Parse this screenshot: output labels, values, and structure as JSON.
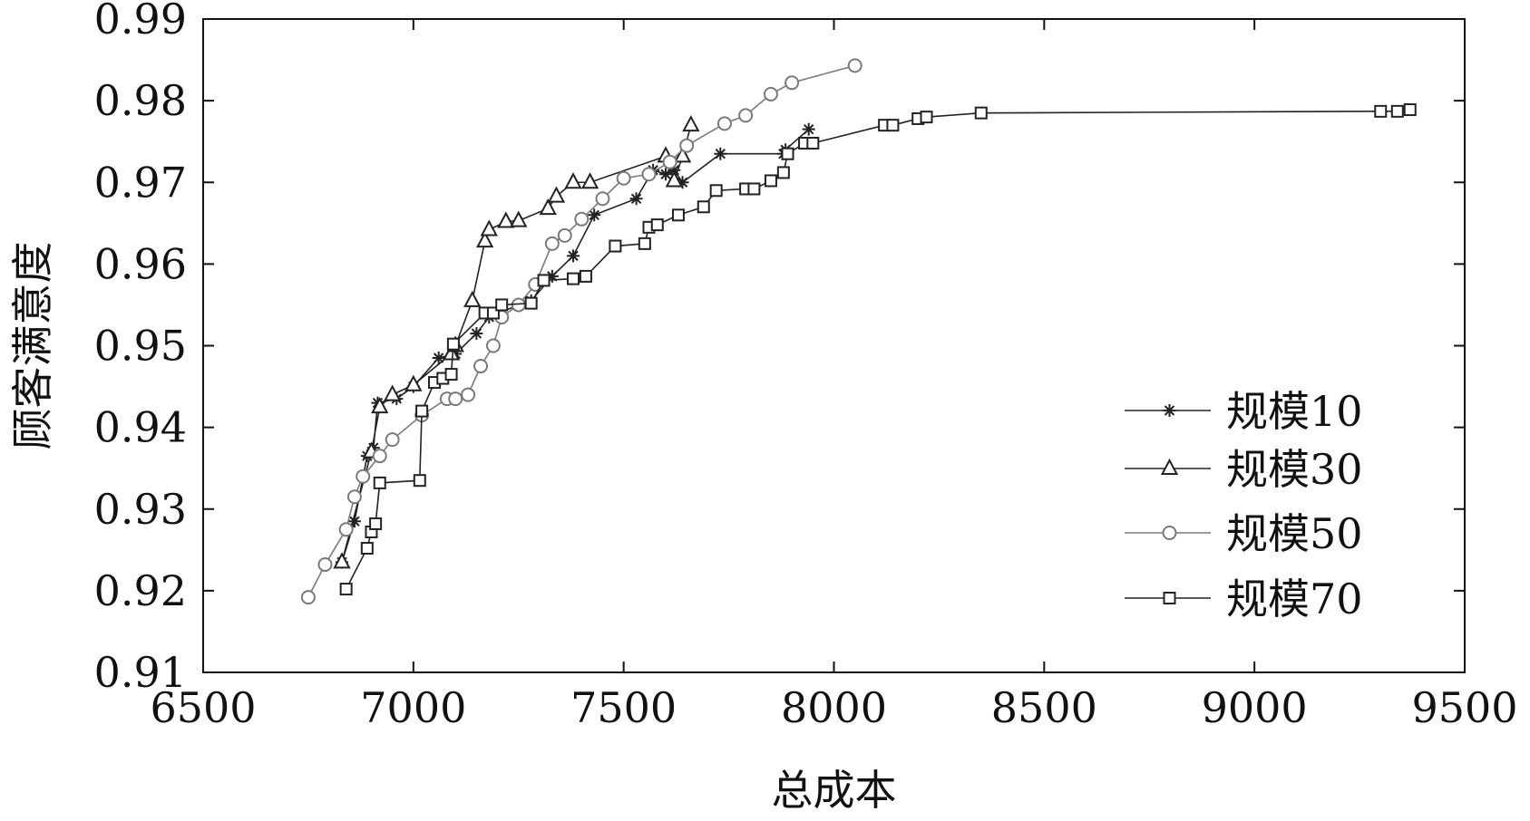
{
  "chart_data": {
    "type": "line",
    "title": "",
    "xlabel": "总成本",
    "ylabel": "顾客满意度",
    "xlim": [
      6500,
      9500
    ],
    "ylim": [
      0.91,
      0.99
    ],
    "xticks": [
      "6500",
      "7000",
      "7500",
      "8000",
      "8500",
      "9000",
      "9500"
    ],
    "yticks": [
      "0.91",
      "0.92",
      "0.93",
      "0.94",
      "0.95",
      "0.96",
      "0.97",
      "0.98",
      "0.99"
    ],
    "grid": false,
    "legend_position": "bottom-right",
    "series": [
      {
        "name": "规模10",
        "marker": "star",
        "color": "#222222",
        "points": [
          [
            6830,
            0.9235
          ],
          [
            6860,
            0.9285
          ],
          [
            6890,
            0.9365
          ],
          [
            6905,
            0.9375
          ],
          [
            6915,
            0.943
          ],
          [
            6960,
            0.9435
          ],
          [
            7000,
            0.945
          ],
          [
            7060,
            0.9485
          ],
          [
            7100,
            0.949
          ],
          [
            7150,
            0.9515
          ],
          [
            7180,
            0.9535
          ],
          [
            7200,
            0.954
          ],
          [
            7280,
            0.9555
          ],
          [
            7330,
            0.9585
          ],
          [
            7380,
            0.961
          ],
          [
            7430,
            0.966
          ],
          [
            7530,
            0.968
          ],
          [
            7570,
            0.9715
          ],
          [
            7600,
            0.971
          ],
          [
            7620,
            0.9715
          ],
          [
            7640,
            0.97
          ],
          [
            7730,
            0.9735
          ],
          [
            7880,
            0.9735
          ],
          [
            7885,
            0.974
          ],
          [
            7940,
            0.9765
          ]
        ]
      },
      {
        "name": "规模30",
        "marker": "triangle",
        "color": "#222222",
        "points": [
          [
            6830,
            0.9235
          ],
          [
            6900,
            0.937
          ],
          [
            6920,
            0.9425
          ],
          [
            6950,
            0.944
          ],
          [
            7000,
            0.9452
          ],
          [
            7090,
            0.949
          ],
          [
            7100,
            0.95
          ],
          [
            7140,
            0.9555
          ],
          [
            7170,
            0.9628
          ],
          [
            7180,
            0.9642
          ],
          [
            7220,
            0.9652
          ],
          [
            7250,
            0.9653
          ],
          [
            7320,
            0.9668
          ],
          [
            7340,
            0.9683
          ],
          [
            7380,
            0.97
          ],
          [
            7420,
            0.97
          ],
          [
            7600,
            0.9732
          ],
          [
            7620,
            0.9702
          ],
          [
            7640,
            0.9732
          ],
          [
            7660,
            0.977
          ]
        ]
      },
      {
        "name": "规模50",
        "marker": "circle",
        "color": "#7a7a7a",
        "points": [
          [
            6750,
            0.9192
          ],
          [
            6790,
            0.9232
          ],
          [
            6840,
            0.9275
          ],
          [
            6860,
            0.9315
          ],
          [
            6880,
            0.934
          ],
          [
            6920,
            0.9365
          ],
          [
            6950,
            0.9385
          ],
          [
            7020,
            0.9415
          ],
          [
            7080,
            0.9435
          ],
          [
            7100,
            0.9435
          ],
          [
            7130,
            0.944
          ],
          [
            7160,
            0.9475
          ],
          [
            7190,
            0.95
          ],
          [
            7210,
            0.9535
          ],
          [
            7250,
            0.955
          ],
          [
            7290,
            0.9575
          ],
          [
            7330,
            0.9625
          ],
          [
            7360,
            0.9635
          ],
          [
            7400,
            0.9655
          ],
          [
            7450,
            0.968
          ],
          [
            7500,
            0.9705
          ],
          [
            7560,
            0.971
          ],
          [
            7610,
            0.9725
          ],
          [
            7650,
            0.9745
          ],
          [
            7740,
            0.9772
          ],
          [
            7790,
            0.9782
          ],
          [
            7850,
            0.9808
          ],
          [
            7900,
            0.9822
          ],
          [
            8050,
            0.9843
          ]
        ]
      },
      {
        "name": "规模70",
        "marker": "square",
        "color": "#222222",
        "points": [
          [
            6840,
            0.9202
          ],
          [
            6890,
            0.9252
          ],
          [
            6900,
            0.9272
          ],
          [
            6910,
            0.9282
          ],
          [
            6920,
            0.9332
          ],
          [
            7015,
            0.9335
          ],
          [
            7020,
            0.942
          ],
          [
            7050,
            0.9455
          ],
          [
            7070,
            0.946
          ],
          [
            7090,
            0.9465
          ],
          [
            7095,
            0.9502
          ],
          [
            7170,
            0.954
          ],
          [
            7190,
            0.954
          ],
          [
            7210,
            0.955
          ],
          [
            7280,
            0.9552
          ],
          [
            7310,
            0.958
          ],
          [
            7380,
            0.9582
          ],
          [
            7410,
            0.9585
          ],
          [
            7480,
            0.9622
          ],
          [
            7550,
            0.9625
          ],
          [
            7560,
            0.9645
          ],
          [
            7580,
            0.9648
          ],
          [
            7630,
            0.966
          ],
          [
            7690,
            0.967
          ],
          [
            7720,
            0.969
          ],
          [
            7790,
            0.9692
          ],
          [
            7810,
            0.9692
          ],
          [
            7850,
            0.9702
          ],
          [
            7880,
            0.9712
          ],
          [
            7890,
            0.9735
          ],
          [
            7930,
            0.9748
          ],
          [
            7950,
            0.9748
          ],
          [
            8120,
            0.977
          ],
          [
            8140,
            0.977
          ],
          [
            8200,
            0.9778
          ],
          [
            8220,
            0.978
          ],
          [
            8350,
            0.9785
          ],
          [
            9300,
            0.9787
          ],
          [
            9340,
            0.9787
          ],
          [
            9370,
            0.9789
          ]
        ]
      }
    ]
  }
}
